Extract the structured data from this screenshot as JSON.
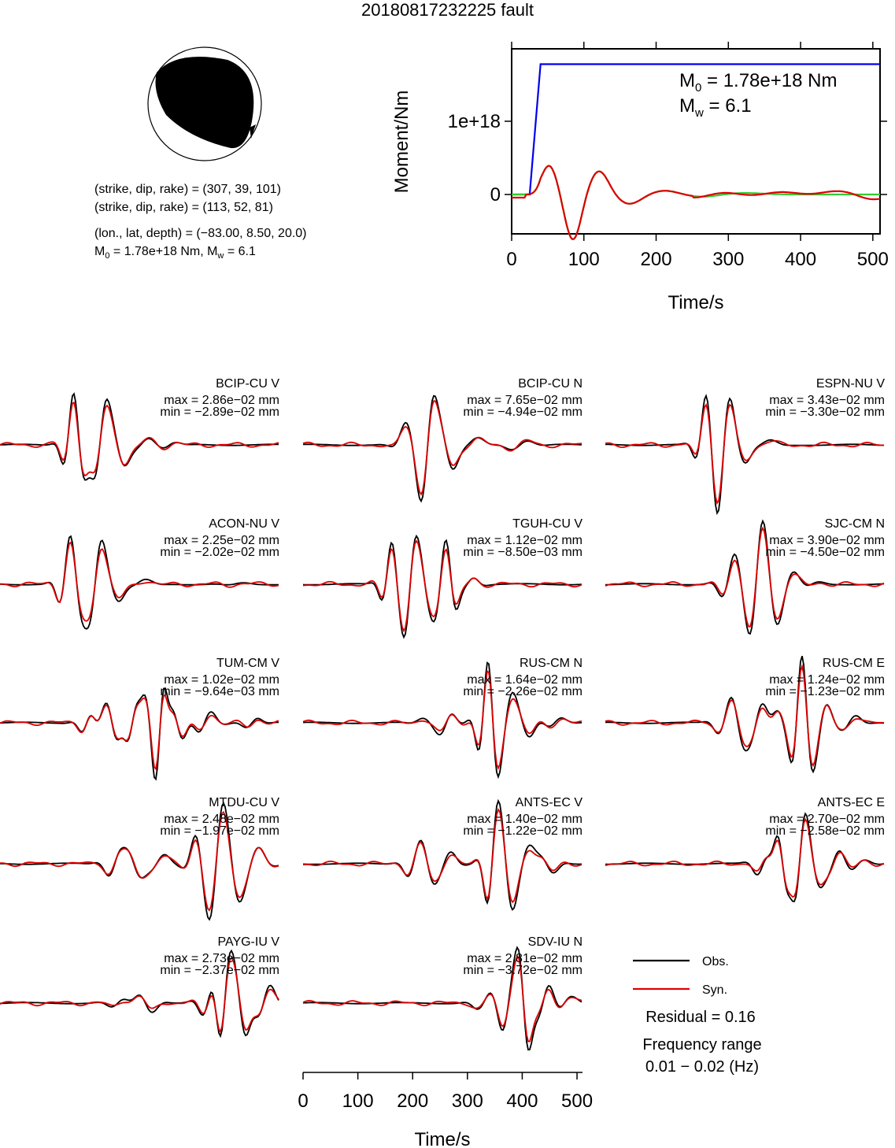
{
  "title": "20180817232225 fault",
  "beachball": {
    "planes": [
      "(strike, dip, rake) = (307, 39, 101)",
      "(strike, dip, rake) = (113, 52, 81)"
    ],
    "location": "(lon., lat, depth) = (−83.00, 8.50, 20.0)",
    "moment_line": {
      "m0_prefix": "M",
      "m0_sub": "0",
      "m0_value": " = 1.78e+18 Nm, M",
      "mw_sub": "w",
      "mw_value": " = 6.1"
    }
  },
  "moment_panel": {
    "type": "line",
    "ylabel": "Moment/Nm",
    "xlabel": "Time/s",
    "xlim": [
      0,
      510
    ],
    "x_ticks": [
      "0",
      "100",
      "200",
      "300",
      "400",
      "500"
    ],
    "y_ticks": [
      "0",
      "1e+18"
    ],
    "annotation_m0": {
      "prefix": "M",
      "sub": "0",
      "value": " = 1.78e+18 Nm"
    },
    "annotation_mw": {
      "prefix": "M",
      "sub": "w",
      "value": " = 6.1"
    },
    "colors": {
      "moment": "#0000ee",
      "stf_green": "#33cc33",
      "stf_red": "#dd0000"
    },
    "chart_data": {
      "type": "line",
      "series": [
        {
          "x": [
            0,
            25,
            40,
            510
          ],
          "y": [
            0,
            0,
            1.78e+18,
            1.78e+18
          ]
        }
      ]
    }
  },
  "waveforms": {
    "obs_color": "#000000",
    "syn_color": "#dd0000",
    "xlabel": "Time/s",
    "x_ticks": [
      "0",
      "100",
      "200",
      "300",
      "400",
      "500"
    ],
    "traces": [
      {
        "station": "BCIP-CU V",
        "max": "max = 2.86e−02 mm",
        "min": "min = −2.89e−02 mm"
      },
      {
        "station": "BCIP-CU N",
        "max": "max = 7.65e−02 mm",
        "min": "min = −4.94e−02 mm"
      },
      {
        "station": "ESPN-NU V",
        "max": "max = 3.43e−02 mm",
        "min": "min = −3.30e−02 mm"
      },
      {
        "station": "ACON-NU V",
        "max": "max = 2.25e−02 mm",
        "min": "min = −2.02e−02 mm"
      },
      {
        "station": "TGUH-CU V",
        "max": "max = 1.12e−02 mm",
        "min": "min = −8.50e−03 mm"
      },
      {
        "station": "SJC-CM N",
        "max": "max = 3.90e−02 mm",
        "min": "min = −4.50e−02 mm"
      },
      {
        "station": "TUM-CM V",
        "max": "max = 1.02e−02 mm",
        "min": "min = −9.64e−03 mm"
      },
      {
        "station": "RUS-CM N",
        "max": "max = 1.64e−02 mm",
        "min": "min = −2.26e−02 mm"
      },
      {
        "station": "RUS-CM E",
        "max": "max = 1.24e−02 mm",
        "min": "min = −1.23e−02 mm"
      },
      {
        "station": "MTDU-CU V",
        "max": "max = 2.48e−02 mm",
        "min": "min = −1.97e−02 mm"
      },
      {
        "station": "ANTS-EC V",
        "max": "max = 1.40e−02 mm",
        "min": "min = −1.22e−02 mm"
      },
      {
        "station": "ANTS-EC E",
        "max": "max = 2.70e−02 mm",
        "min": "min = −2.58e−02 mm"
      },
      {
        "station": "PAYG-IU V",
        "max": "max = 2.73e−02 mm",
        "min": "min = −2.37e−02 mm"
      },
      {
        "station": "SDV-IU N",
        "max": "max = 2.81e−02 mm",
        "min": "min = −3.72e−02 mm"
      }
    ]
  },
  "legend": {
    "obs": "Obs.",
    "syn": "Syn.",
    "residual": "Residual = 0.16",
    "freq_title": "Frequency range",
    "freq_value": "0.01 − 0.02 (Hz)"
  }
}
